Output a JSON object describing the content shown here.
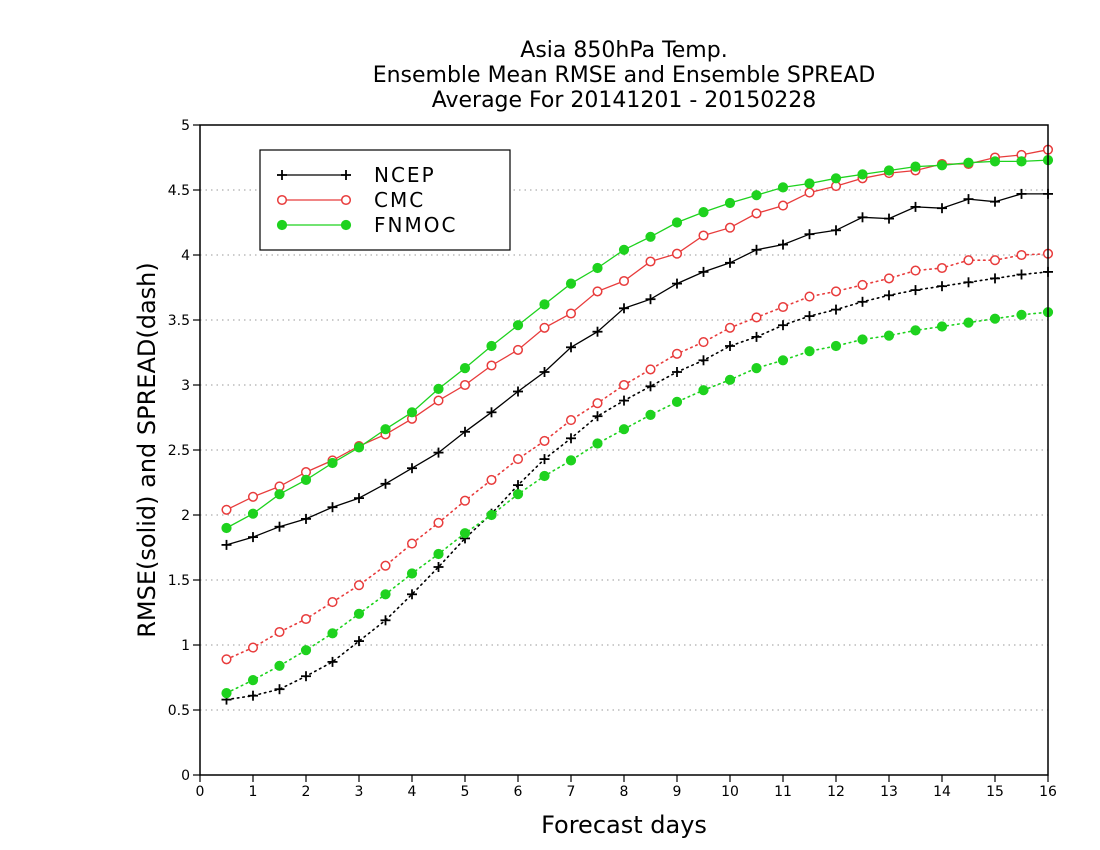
{
  "chart_data": {
    "type": "line",
    "title": [
      "Asia 850hPa Temp.",
      "Ensemble Mean RMSE and Ensemble SPREAD",
      "Average For 20141201 - 20150228"
    ],
    "xlabel": "Forecast days",
    "ylabel": "RMSE(solid) and SPREAD(dash)",
    "xlim": [
      0,
      16
    ],
    "ylim": [
      0,
      5
    ],
    "xticks": [
      0,
      1,
      2,
      3,
      4,
      5,
      6,
      7,
      8,
      9,
      10,
      11,
      12,
      13,
      14,
      15,
      16
    ],
    "yticks": [
      0,
      0.5,
      1,
      1.5,
      2,
      2.5,
      3,
      3.5,
      4,
      4.5,
      5
    ],
    "ytick_labels": [
      "0",
      "0.5",
      "1",
      "1.5",
      "2",
      "2.5",
      "3",
      "3.5",
      "4",
      "4.5",
      "5"
    ],
    "grid": "horizontal dotted",
    "legend_position": "top-left",
    "legend": [
      {
        "name": "NCEP",
        "color": "#000000",
        "marker": "plus"
      },
      {
        "name": "CMC",
        "color": "#e83c3c",
        "marker": "open-circle"
      },
      {
        "name": "FNMOC",
        "color": "#1ed21e",
        "marker": "filled-circle"
      }
    ],
    "x": [
      0.5,
      1,
      1.5,
      2,
      2.5,
      3,
      3.5,
      4,
      4.5,
      5,
      5.5,
      6,
      6.5,
      7,
      7.5,
      8,
      8.5,
      9,
      9.5,
      10,
      10.5,
      11,
      11.5,
      12,
      12.5,
      13,
      13.5,
      14,
      14.5,
      15,
      15.5,
      16
    ],
    "series": [
      {
        "name": "NCEP",
        "style": "solid",
        "color": "#000000",
        "marker": "plus",
        "values": [
          1.77,
          1.83,
          1.91,
          1.97,
          2.06,
          2.13,
          2.24,
          2.36,
          2.48,
          2.64,
          2.79,
          2.95,
          3.1,
          3.29,
          3.41,
          3.59,
          3.66,
          3.78,
          3.87,
          3.94,
          4.04,
          4.08,
          4.16,
          4.19,
          4.29,
          4.28,
          4.37,
          4.36,
          4.43,
          4.41,
          4.47,
          4.47
        ]
      },
      {
        "name": "CMC",
        "style": "solid",
        "color": "#e83c3c",
        "marker": "open-circle",
        "values": [
          2.04,
          2.14,
          2.22,
          2.33,
          2.42,
          2.53,
          2.62,
          2.74,
          2.88,
          3.0,
          3.15,
          3.27,
          3.44,
          3.55,
          3.72,
          3.8,
          3.95,
          4.01,
          4.15,
          4.21,
          4.32,
          4.38,
          4.48,
          4.53,
          4.59,
          4.63,
          4.65,
          4.7,
          4.7,
          4.75,
          4.77,
          4.81
        ]
      },
      {
        "name": "FNMOC",
        "style": "solid",
        "color": "#1ed21e",
        "marker": "filled-circle",
        "values": [
          1.9,
          2.01,
          2.16,
          2.27,
          2.4,
          2.52,
          2.66,
          2.79,
          2.97,
          3.13,
          3.3,
          3.46,
          3.62,
          3.78,
          3.9,
          4.04,
          4.14,
          4.25,
          4.33,
          4.4,
          4.46,
          4.52,
          4.55,
          4.59,
          4.62,
          4.65,
          4.68,
          4.69,
          4.71,
          4.72,
          4.72,
          4.73
        ]
      },
      {
        "name": "NCEP",
        "style": "dotted",
        "color": "#000000",
        "marker": "plus",
        "values": [
          0.58,
          0.61,
          0.66,
          0.76,
          0.87,
          1.03,
          1.19,
          1.39,
          1.6,
          1.82,
          2.01,
          2.23,
          2.43,
          2.59,
          2.76,
          2.88,
          2.99,
          3.1,
          3.19,
          3.3,
          3.37,
          3.46,
          3.53,
          3.58,
          3.64,
          3.69,
          3.73,
          3.76,
          3.79,
          3.82,
          3.85,
          3.87
        ]
      },
      {
        "name": "CMC",
        "style": "dotted",
        "color": "#e83c3c",
        "marker": "open-circle",
        "values": [
          0.89,
          0.98,
          1.1,
          1.2,
          1.33,
          1.46,
          1.61,
          1.78,
          1.94,
          2.11,
          2.27,
          2.43,
          2.57,
          2.73,
          2.86,
          3.0,
          3.12,
          3.24,
          3.33,
          3.44,
          3.52,
          3.6,
          3.68,
          3.72,
          3.77,
          3.82,
          3.88,
          3.9,
          3.96,
          3.96,
          4.0,
          4.01
        ]
      },
      {
        "name": "FNMOC",
        "style": "dotted",
        "color": "#1ed21e",
        "marker": "filled-circle",
        "values": [
          0.63,
          0.73,
          0.84,
          0.96,
          1.09,
          1.24,
          1.39,
          1.55,
          1.7,
          1.86,
          2.0,
          2.16,
          2.3,
          2.42,
          2.55,
          2.66,
          2.77,
          2.87,
          2.96,
          3.04,
          3.13,
          3.19,
          3.26,
          3.3,
          3.35,
          3.38,
          3.42,
          3.45,
          3.48,
          3.51,
          3.54,
          3.56
        ]
      }
    ]
  }
}
